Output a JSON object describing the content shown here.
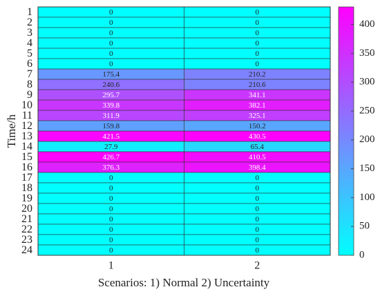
{
  "chart_data": {
    "type": "heatmap",
    "xlabel": "Scenarios: 1) Normal 2) Uncertainty",
    "ylabel": "Time/h",
    "x": [
      "1",
      "2"
    ],
    "y": [
      "1",
      "2",
      "3",
      "4",
      "5",
      "6",
      "7",
      "8",
      "9",
      "10",
      "11",
      "12",
      "13",
      "14",
      "15",
      "16",
      "17",
      "18",
      "19",
      "20",
      "21",
      "22",
      "23",
      "24"
    ],
    "values": [
      [
        0,
        0
      ],
      [
        0,
        0
      ],
      [
        0,
        0
      ],
      [
        0,
        0
      ],
      [
        0,
        0
      ],
      [
        0,
        0
      ],
      [
        175.4,
        210.2
      ],
      [
        240.6,
        210.6
      ],
      [
        295.7,
        341.1
      ],
      [
        339.8,
        382.1
      ],
      [
        311.9,
        325.1
      ],
      [
        159.8,
        150.2
      ],
      [
        421.5,
        430.5
      ],
      [
        27.9,
        65.4
      ],
      [
        426.7,
        410.5
      ],
      [
        376.3,
        398.4
      ],
      [
        0,
        0
      ],
      [
        0,
        0
      ],
      [
        0,
        0
      ],
      [
        0,
        0
      ],
      [
        0,
        0
      ],
      [
        0,
        0
      ],
      [
        0,
        0
      ],
      [
        0,
        0
      ]
    ],
    "colormap": [
      "#00ffff",
      "#ff00ff"
    ],
    "clim": [
      0,
      430.5
    ],
    "cticks": [
      0,
      50,
      100,
      150,
      200,
      250,
      300,
      350,
      400
    ]
  }
}
